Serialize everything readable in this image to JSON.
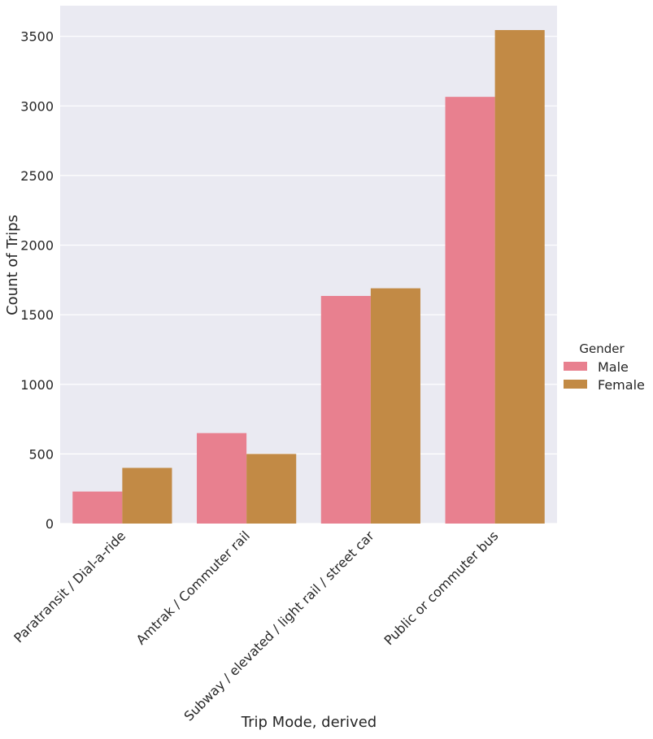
{
  "chart_data": {
    "type": "bar",
    "title": "",
    "xlabel": "Trip Mode, derived",
    "ylabel": "Count of Trips",
    "categories": [
      "Paratransit / Dial-a-ride",
      "Amtrak / Commuter rail",
      "Subway / elevated / light rail / street car",
      "Public or commuter bus"
    ],
    "series": [
      {
        "name": "Male",
        "color": "#e8808f",
        "values": [
          230,
          650,
          1635,
          3065
        ]
      },
      {
        "name": "Female",
        "color": "#c28a45",
        "values": [
          400,
          500,
          1690,
          3545
        ]
      }
    ],
    "ylim": [
      0,
      3720
    ],
    "yticks": [
      0,
      500,
      1000,
      1500,
      2000,
      2500,
      3000,
      3500
    ],
    "grid": true,
    "background": "#eaeaf2",
    "legend": {
      "title": "Gender",
      "placement": "right"
    }
  }
}
